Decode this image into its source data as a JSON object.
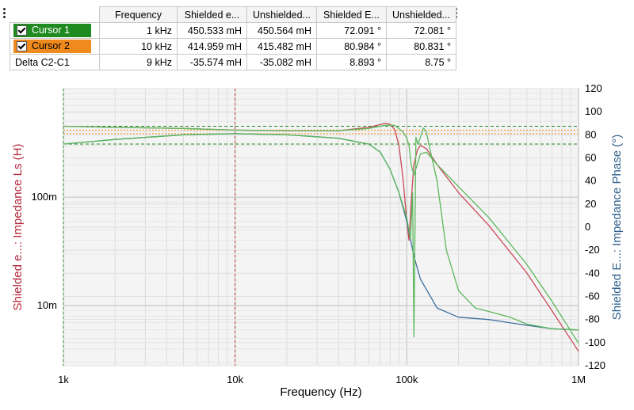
{
  "table": {
    "headers": [
      "Frequency",
      "Shielded e...",
      "Unshielded...",
      "Shielded E...",
      "Unshielded..."
    ],
    "rows": [
      {
        "label": "Cursor 1",
        "checked": true,
        "color": "#1f8a1f",
        "cells": [
          "1 kHz",
          "450.533 mH",
          "450.564 mH",
          "72.091 °",
          "72.081 °"
        ]
      },
      {
        "label": "Cursor 2",
        "checked": true,
        "color": "#f08a1c",
        "cells": [
          "10 kHz",
          "414.959 mH",
          "415.482 mH",
          "80.984 °",
          "80.831 °"
        ]
      },
      {
        "label": "Delta C2-C1",
        "checked": false,
        "color": "",
        "cells": [
          "9 kHz",
          "-35.574 mH",
          "-35.082 mH",
          "8.893 °",
          "8.75 °"
        ]
      }
    ]
  },
  "chart_data": {
    "type": "line",
    "xlabel": "Frequency (Hz)",
    "ylabel_left": "Shielded e...: Impedance Ls (H)",
    "ylabel_right": "Shielded E...: Impedance Phase (°)",
    "x_scale": "log",
    "xlim": [
      1000,
      1000000
    ],
    "x_ticks": [
      {
        "v": 1000,
        "label": "1k"
      },
      {
        "v": 10000,
        "label": "10k"
      },
      {
        "v": 100000,
        "label": "100k"
      },
      {
        "v": 1000000,
        "label": "1M"
      }
    ],
    "y_left_scale": "log",
    "y_left_lim": [
      0.0028,
      1.0
    ],
    "y_left_ticks": [
      {
        "v": 0.1,
        "label": "100m"
      },
      {
        "v": 0.01,
        "label": "10m"
      }
    ],
    "y_right_lim": [
      -120,
      120
    ],
    "y_right_ticks": [
      120,
      100,
      80,
      60,
      40,
      20,
      0,
      -20,
      -40,
      -60,
      -80,
      -100,
      -120
    ],
    "grid": true,
    "colors": {
      "left_axis": "#b5273b",
      "right_axis": "#2f5f8c",
      "cursor1": "#1f8a1f",
      "cursor2": "#f08a1c"
    },
    "series": [
      {
        "color": "#c84a5a",
        "axis": "left",
        "points": [
          [
            1000,
            0.45
          ],
          [
            2000,
            0.44
          ],
          [
            5000,
            0.43
          ],
          [
            10000,
            0.415
          ],
          [
            20000,
            0.41
          ],
          [
            40000,
            0.41
          ],
          [
            60000,
            0.44
          ],
          [
            75000,
            0.48
          ],
          [
            80000,
            0.47
          ],
          [
            85000,
            0.42
          ],
          [
            90000,
            0.3
          ],
          [
            95000,
            0.15
          ],
          [
            100000,
            0.06
          ],
          [
            103000,
            0.04
          ],
          [
            106000,
            0.09
          ],
          [
            110000,
            0.2
          ],
          [
            115000,
            0.27
          ],
          [
            120000,
            0.3
          ],
          [
            130000,
            0.28
          ],
          [
            150000,
            0.2
          ],
          [
            200000,
            0.11
          ],
          [
            300000,
            0.055
          ],
          [
            500000,
            0.02
          ],
          [
            700000,
            0.009
          ],
          [
            1000000,
            0.0038
          ]
        ]
      },
      {
        "color": "#5cb85c",
        "axis": "left",
        "points": [
          [
            1000,
            0.45
          ],
          [
            2000,
            0.44
          ],
          [
            5000,
            0.43
          ],
          [
            10000,
            0.415
          ],
          [
            20000,
            0.41
          ],
          [
            40000,
            0.41
          ],
          [
            60000,
            0.43
          ],
          [
            75000,
            0.46
          ],
          [
            85000,
            0.46
          ],
          [
            95000,
            0.4
          ],
          [
            100000,
            0.35
          ],
          [
            103000,
            0.3
          ],
          [
            106000,
            0.2
          ],
          [
            110000,
            0.16
          ],
          [
            115000,
            0.2
          ],
          [
            120000,
            0.25
          ],
          [
            130000,
            0.26
          ],
          [
            150000,
            0.2
          ],
          [
            200000,
            0.125
          ],
          [
            300000,
            0.065
          ],
          [
            500000,
            0.024
          ],
          [
            700000,
            0.011
          ],
          [
            1000000,
            0.0045
          ]
        ]
      },
      {
        "color": "#3d6f9e",
        "axis": "right",
        "points": [
          [
            1000,
            72
          ],
          [
            2000,
            76
          ],
          [
            5000,
            80
          ],
          [
            10000,
            81
          ],
          [
            20000,
            80
          ],
          [
            40000,
            77
          ],
          [
            60000,
            72
          ],
          [
            70000,
            65
          ],
          [
            80000,
            50
          ],
          [
            90000,
            30
          ],
          [
            100000,
            5
          ],
          [
            110000,
            -25
          ],
          [
            120000,
            -45
          ],
          [
            150000,
            -70
          ],
          [
            200000,
            -78
          ],
          [
            300000,
            -80
          ],
          [
            500000,
            -85
          ],
          [
            700000,
            -88
          ],
          [
            1000000,
            -89
          ]
        ]
      },
      {
        "color": "#5cb85c",
        "axis": "right",
        "points": [
          [
            1000,
            72
          ],
          [
            2000,
            76
          ],
          [
            5000,
            80
          ],
          [
            10000,
            81
          ],
          [
            20000,
            80
          ],
          [
            40000,
            77
          ],
          [
            60000,
            72
          ],
          [
            70000,
            65
          ],
          [
            80000,
            50
          ],
          [
            90000,
            30
          ],
          [
            100000,
            8
          ],
          [
            105000,
            -10
          ],
          [
            108000,
            30
          ],
          [
            110000,
            -95
          ],
          [
            113000,
            78
          ],
          [
            116000,
            72
          ],
          [
            120000,
            78
          ],
          [
            125000,
            86
          ],
          [
            130000,
            82
          ],
          [
            140000,
            60
          ],
          [
            150000,
            40
          ],
          [
            170000,
            -20
          ],
          [
            200000,
            -55
          ],
          [
            250000,
            -70
          ],
          [
            300000,
            -73
          ],
          [
            400000,
            -78
          ],
          [
            500000,
            -84
          ],
          [
            700000,
            -88
          ],
          [
            1000000,
            -89
          ]
        ]
      }
    ],
    "reference_lines": [
      {
        "axis": "left",
        "value": 0.45,
        "color": "#1f8a1f",
        "dash": "4,3"
      },
      {
        "axis": "left",
        "value": 0.415,
        "color": "#f08a1c",
        "dash": "2,2"
      },
      {
        "axis": "right",
        "value": 72,
        "color": "#1f8a1f",
        "dash": "4,3"
      },
      {
        "axis": "right",
        "value": 81,
        "color": "#f08a1c",
        "dash": "2,2"
      }
    ],
    "cursors_x": [
      {
        "value": 1000,
        "color": "#1f8a1f"
      },
      {
        "value": 10000,
        "color": "#c0392b"
      }
    ]
  }
}
